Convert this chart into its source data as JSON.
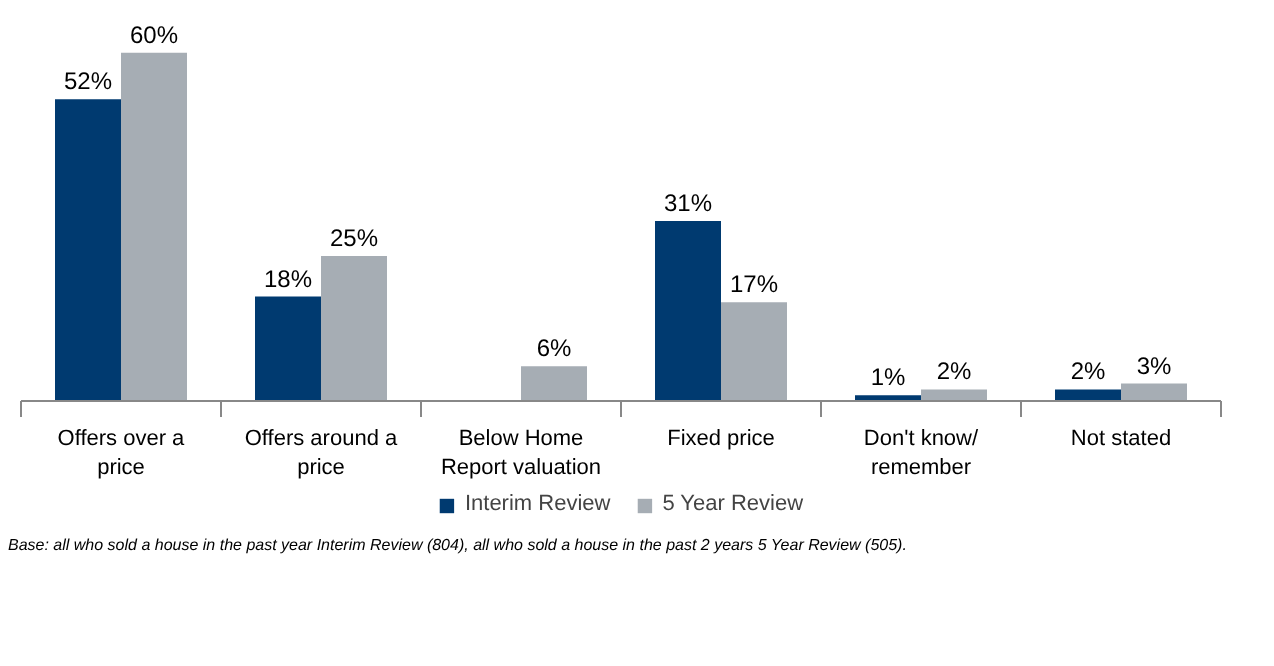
{
  "chart_data": {
    "type": "bar",
    "categories": [
      "Offers over a price",
      "Offers around a price",
      "Below Home Report valuation",
      "Fixed price",
      "Don't know/ remember",
      "Not stated"
    ],
    "series": [
      {
        "name": "Interim Review",
        "color": "#003a70",
        "values": [
          52,
          18,
          null,
          31,
          1,
          2
        ],
        "value_labels": [
          "52%",
          "18%",
          null,
          "31%",
          "1%",
          "2%"
        ]
      },
      {
        "name": "5 Year Review",
        "color": "#a6adb4",
        "values": [
          60,
          25,
          6,
          17,
          2,
          3
        ],
        "value_labels": [
          "60%",
          "25%",
          "6%",
          "17%",
          "2%",
          "3%"
        ]
      }
    ],
    "legend": "bottom",
    "grid": false,
    "tick_labels": "x",
    "annotations": [
      "Base: all who sold a house in the past year Interim Review (804), all who sold a house in the past 2 years 5 Year Review (505)."
    ]
  }
}
